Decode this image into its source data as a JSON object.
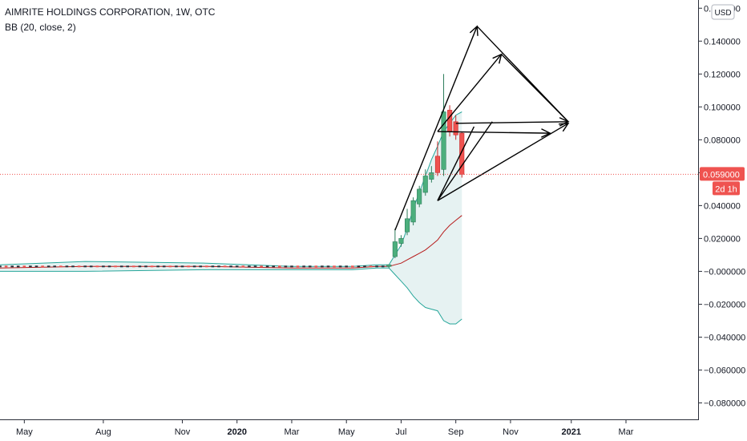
{
  "header": {
    "symbol_line": "AIMRITE HOLDINGS CORPORATION, 1W, OTC",
    "indicator_line": "BB (20, close, 2)"
  },
  "currency_label": "USD",
  "price_badge": {
    "value": "0.059000",
    "countdown": "2d 1h",
    "color": "#ef5350"
  },
  "colors": {
    "up": "#26a69a",
    "up_body": "#4caf7d",
    "down": "#ef5350",
    "bb_upper": "#26a69a",
    "bb_lower": "#26a69a",
    "bb_basis": "#b71c1c",
    "bb_fill": "#e6f2f2",
    "drawing": "#000000"
  },
  "chart_data": {
    "type": "candlestick",
    "y_axis": {
      "ylim": [
        -0.09,
        0.165
      ],
      "ticks": [
        0.16,
        0.14,
        0.12,
        0.1,
        0.08,
        0.06,
        0.04,
        0.02,
        0.0,
        -0.02,
        -0.04,
        -0.06,
        -0.08
      ],
      "tick_labels": [
        "0.160000",
        "0.140000",
        "0.120000",
        "0.100000",
        "0.080000",
        "0.060000",
        "0.040000",
        "0.020000",
        "−0.000000",
        "−0.020000",
        "−0.040000",
        "−0.060000",
        "−0.080000"
      ]
    },
    "x_axis": {
      "tick_labels": [
        {
          "label": "May",
          "week": 0,
          "bold": false
        },
        {
          "label": "Aug",
          "week": 13,
          "bold": false
        },
        {
          "label": "Nov",
          "week": 26,
          "bold": false
        },
        {
          "label": "2020",
          "week": 35,
          "bold": true
        },
        {
          "label": "Mar",
          "week": 44,
          "bold": false
        },
        {
          "label": "May",
          "week": 53,
          "bold": false
        },
        {
          "label": "Jul",
          "week": 62,
          "bold": false
        },
        {
          "label": "Sep",
          "week": 71,
          "bold": false
        },
        {
          "label": "Nov",
          "week": 80,
          "bold": false
        },
        {
          "label": "2021",
          "week": 90,
          "bold": true
        },
        {
          "label": "Mar",
          "week": 99,
          "bold": false
        }
      ],
      "week_range": [
        -4,
        111
      ]
    },
    "candles": [
      {
        "week": 60,
        "o": 0.003,
        "h": 0.004,
        "l": 0.002,
        "c": 0.004
      },
      {
        "week": 61,
        "o": 0.009,
        "h": 0.026,
        "l": 0.008,
        "c": 0.018
      },
      {
        "week": 62,
        "o": 0.017,
        "h": 0.022,
        "l": 0.015,
        "c": 0.02
      },
      {
        "week": 63,
        "o": 0.024,
        "h": 0.038,
        "l": 0.022,
        "c": 0.032
      },
      {
        "week": 64,
        "o": 0.03,
        "h": 0.045,
        "l": 0.028,
        "c": 0.043
      },
      {
        "week": 65,
        "o": 0.041,
        "h": 0.052,
        "l": 0.039,
        "c": 0.05
      },
      {
        "week": 66,
        "o": 0.048,
        "h": 0.062,
        "l": 0.046,
        "c": 0.058
      },
      {
        "week": 67,
        "o": 0.056,
        "h": 0.064,
        "l": 0.054,
        "c": 0.06
      },
      {
        "week": 68,
        "o": 0.07,
        "h": 0.079,
        "l": 0.058,
        "c": 0.06
      },
      {
        "week": 69,
        "o": 0.062,
        "h": 0.12,
        "l": 0.058,
        "c": 0.097
      },
      {
        "week": 70,
        "o": 0.098,
        "h": 0.101,
        "l": 0.082,
        "c": 0.085
      },
      {
        "week": 71,
        "o": 0.091,
        "h": 0.095,
        "l": 0.08,
        "c": 0.083
      },
      {
        "week": 72,
        "o": 0.084,
        "h": 0.085,
        "l": 0.057,
        "c": 0.059
      }
    ],
    "flat_price": 0.003,
    "series": [
      {
        "name": "BB upper",
        "x": [
          -4,
          10,
          30,
          44,
          54,
          58,
          60,
          61,
          62,
          63,
          64,
          65,
          66,
          67,
          68,
          69,
          70,
          71,
          72
        ],
        "values": [
          0.004,
          0.006,
          0.005,
          0.003,
          0.003,
          0.004,
          0.004,
          0.01,
          0.016,
          0.026,
          0.038,
          0.048,
          0.058,
          0.068,
          0.076,
          0.085,
          0.09,
          0.095,
          0.097
        ]
      },
      {
        "name": "BB basis",
        "x": [
          -4,
          10,
          30,
          44,
          54,
          58,
          60,
          61,
          62,
          63,
          64,
          65,
          66,
          67,
          68,
          69,
          70,
          71,
          72
        ],
        "values": [
          0.002,
          0.003,
          0.003,
          0.002,
          0.002,
          0.003,
          0.003,
          0.004,
          0.005,
          0.007,
          0.009,
          0.011,
          0.013,
          0.016,
          0.019,
          0.024,
          0.028,
          0.031,
          0.034
        ]
      },
      {
        "name": "BB lower",
        "x": [
          -4,
          10,
          30,
          44,
          54,
          58,
          60,
          61,
          62,
          63,
          64,
          65,
          66,
          67,
          68,
          69,
          70,
          71,
          72
        ],
        "values": [
          0.0,
          0.0,
          0.001,
          0.001,
          0.001,
          0.002,
          0.002,
          -0.002,
          -0.006,
          -0.01,
          -0.015,
          -0.019,
          -0.022,
          -0.023,
          -0.024,
          -0.03,
          -0.032,
          -0.032,
          -0.029
        ]
      }
    ],
    "last_price": 0.059,
    "annotations": [
      {
        "kind": "arrow",
        "from": [
          61,
          0.025
        ],
        "to": [
          74.5,
          0.149
        ]
      },
      {
        "kind": "arrow",
        "from": [
          68,
          0.085
        ],
        "to": [
          78.5,
          0.132
        ]
      },
      {
        "kind": "line",
        "from": [
          74.5,
          0.149
        ],
        "to": [
          89.5,
          0.091
        ]
      },
      {
        "kind": "line",
        "from": [
          78.5,
          0.132
        ],
        "to": [
          89.5,
          0.091
        ]
      },
      {
        "kind": "arrow",
        "from": [
          71,
          0.09
        ],
        "to": [
          89.5,
          0.091
        ]
      },
      {
        "kind": "arrow",
        "from": [
          68,
          0.085
        ],
        "to": [
          86.5,
          0.084
        ]
      },
      {
        "kind": "arrow",
        "from": [
          68,
          0.043
        ],
        "to": [
          89.5,
          0.09
        ]
      },
      {
        "kind": "line",
        "from": [
          68,
          0.043
        ],
        "to": [
          74,
          0.088
        ]
      },
      {
        "kind": "line",
        "from": [
          68,
          0.043
        ],
        "to": [
          77,
          0.091
        ]
      }
    ]
  }
}
